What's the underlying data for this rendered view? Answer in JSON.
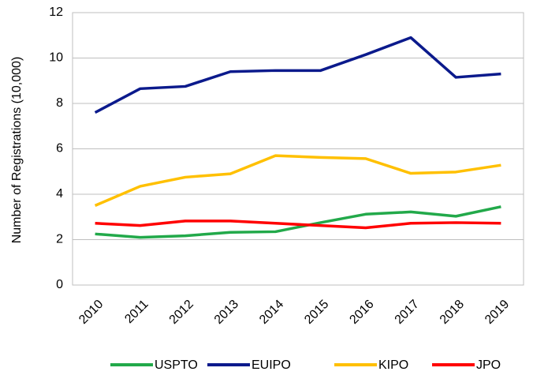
{
  "chart_data": {
    "type": "line",
    "y_label": "Number of Registrations  (10,000)",
    "categories": [
      "2010",
      "2011",
      "2012",
      "2013",
      "2014",
      "2015",
      "2016",
      "2017",
      "2018",
      "2019"
    ],
    "series": [
      {
        "name": "USPTO",
        "color": "#22a94a",
        "values": [
          2.25,
          2.1,
          2.17,
          2.32,
          2.35,
          2.75,
          3.12,
          3.22,
          3.03,
          3.45
        ]
      },
      {
        "name": "EUIPO",
        "color": "#0b1a8c",
        "values": [
          7.6,
          8.65,
          8.75,
          9.4,
          9.45,
          9.45,
          10.15,
          10.9,
          9.15,
          9.3
        ]
      },
      {
        "name": "KIPO",
        "color": "#ffc000",
        "values": [
          3.5,
          4.35,
          4.75,
          4.9,
          5.7,
          5.62,
          5.57,
          4.92,
          4.98,
          5.28
        ]
      },
      {
        "name": "JPO",
        "color": "#ff0000",
        "values": [
          2.72,
          2.62,
          2.82,
          2.82,
          2.72,
          2.62,
          2.52,
          2.72,
          2.75,
          2.72
        ]
      }
    ],
    "ylim": [
      0,
      12
    ],
    "yticks": [
      0,
      2,
      4,
      6,
      8,
      10,
      12
    ],
    "grid": true
  }
}
